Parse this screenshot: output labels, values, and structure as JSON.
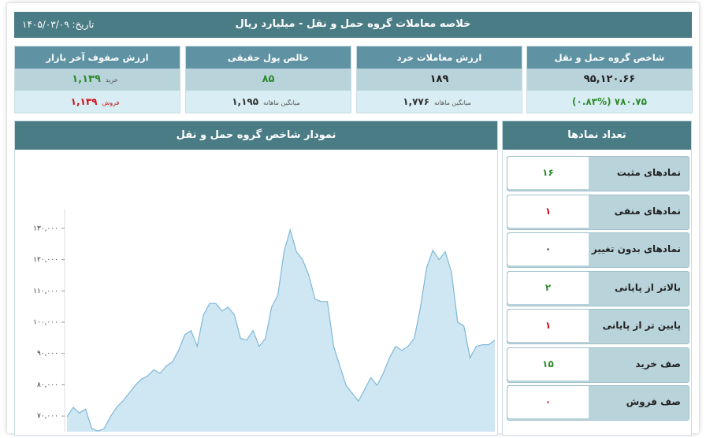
{
  "header": {
    "title": "خلاصه معاملات گروه حمل و نقل - میلیارد ریال",
    "date": "تاریخ: ۱۴۰۵/۰۳/۰۹"
  },
  "cards": [
    {
      "title": "شاخص گروه حمل و نقل",
      "value": "۹۵,۱۲۰.۶۶",
      "change": "۷۸۰.۷۵ (۰.۸۳%)",
      "change_color": "#2e8b2e"
    },
    {
      "title": "ارزش معاملات خرد",
      "value": "۱۸۹",
      "avg_label": "میانگین ماهانه",
      "avg_value": "۱,۷۷۶"
    },
    {
      "title": "خالص پول حقیقی",
      "value": "۸۵",
      "value_color": "#2e8b2e",
      "avg_label": "میانگین ماهانه",
      "avg_value": "۱,۱۹۵"
    },
    {
      "title": "ارزش صفوف آخر بازار",
      "buy_label": "خرید",
      "buy_value": "۱,۱۳۹",
      "buy_color": "#2e8b2e",
      "sell_label": "فروش",
      "sell_value": "۱,۱۳۹",
      "sell_color": "#d0101a"
    }
  ],
  "symbols": {
    "title": "تعداد نمادها",
    "rows": [
      {
        "label": "نمادهای مثبت",
        "value": "۱۶",
        "color": "#2e8b2e"
      },
      {
        "label": "نمادهای منفی",
        "value": "۱",
        "color": "#d0101a"
      },
      {
        "label": "نمادهای بدون تغییر",
        "value": "۰",
        "color": "#222222"
      },
      {
        "label": "بالاتر از پایانی",
        "value": "۲",
        "color": "#2e8b2e"
      },
      {
        "label": "پایین تر از پایانی",
        "value": "۱",
        "color": "#d0101a"
      },
      {
        "label": "صف خرید",
        "value": "۱۵",
        "color": "#2e8b2e"
      },
      {
        "label": "صف فروش",
        "value": "۰",
        "color": "#d0101a"
      }
    ]
  },
  "chart_data": {
    "type": "area",
    "title": "نمودار شاخص گروه حمل و نقل",
    "color": "#7fb8d8",
    "fill": "#cfe6f3",
    "grid": false,
    "values": [
      69800,
      72800,
      71000,
      72200,
      66000,
      65200,
      66000,
      69800,
      72800,
      74800,
      77300,
      79800,
      81800,
      82800,
      84800,
      83600,
      86000,
      87300,
      91000,
      96000,
      97300,
      92300,
      102300,
      106000,
      106000,
      103600,
      104800,
      102300,
      94800,
      94300,
      97300,
      92300,
      94800,
      104800,
      108600,
      122500,
      129500,
      122500,
      120000,
      115000,
      107400,
      106600,
      106600,
      92300,
      86000,
      79800,
      77300,
      74800,
      78500,
      82300,
      79800,
      83600,
      88600,
      92300,
      91000,
      92300,
      94800,
      104800,
      117400,
      123000,
      120000,
      122500,
      116100,
      100000,
      98800,
      88600,
      92300,
      92800,
      92800,
      94300
    ],
    "ylim": [
      65000,
      135000
    ],
    "yticks": [
      {
        "value": 70000,
        "label": "۷۰,۰۰۰"
      },
      {
        "value": 80000,
        "label": "۸۰,۰۰۰"
      },
      {
        "value": 90000,
        "label": "۹۰,۰۰۰"
      },
      {
        "value": 100000,
        "label": "۱۰۰,۰۰۰"
      },
      {
        "value": 110000,
        "label": "۱۱۰,۰۰۰"
      },
      {
        "value": 120000,
        "label": "۱۲۰,۰۰۰"
      },
      {
        "value": 130000,
        "label": "۱۳۰,۰۰۰"
      }
    ]
  }
}
